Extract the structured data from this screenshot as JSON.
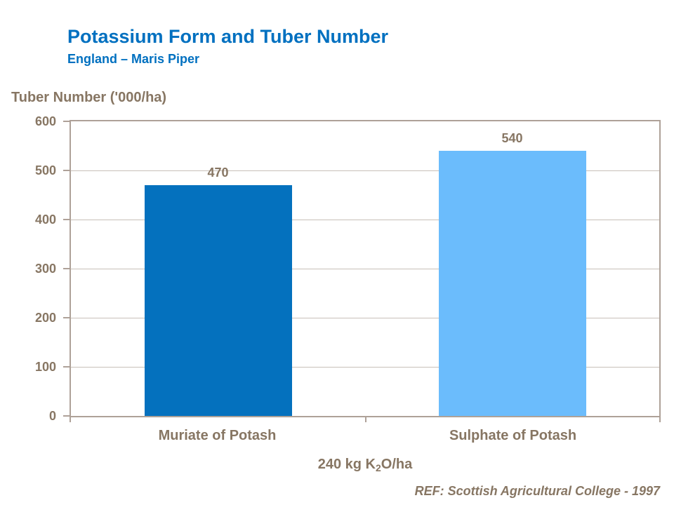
{
  "header": {
    "title": "Potassium Form and Tuber Number",
    "subtitle": "England – Maris Piper"
  },
  "chart_data": {
    "type": "bar",
    "title": "Potassium Form and Tuber Number",
    "subtitle": "England – Maris Piper",
    "categories": [
      "Muriate of Potash",
      "Sulphate of Potash"
    ],
    "values": [
      470,
      540
    ],
    "ylabel": "Tuber Number ('000/ha)",
    "xlabel": {
      "prefix": "240 kg K",
      "sub": "2",
      "suffix": "O/ha"
    },
    "ylim": [
      0,
      600
    ],
    "yticks": [
      0,
      100,
      200,
      300,
      400,
      500,
      600
    ],
    "grid": true,
    "legend": "none",
    "bar_colors": [
      "#0471BE",
      "#6BBCFC"
    ]
  },
  "footer": {
    "ref": "REF: Scottish Agricultural College - 1997"
  },
  "colors": {
    "title_blue": "#0070C0",
    "text_brown": "#877663",
    "axis_frame": "#AEA198",
    "gridline": "#C8C0B8",
    "background": "#FFFFFF"
  }
}
